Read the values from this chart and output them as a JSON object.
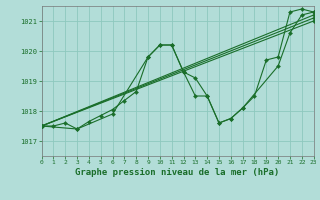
{
  "title": "Graphe pression niveau de la mer (hPa)",
  "background_color": "#b2ddd8",
  "grid_color": "#8ec8be",
  "line_color": "#1a6e2a",
  "x_min": 0,
  "x_max": 23,
  "y_min": 1016.5,
  "y_max": 1021.5,
  "yticks": [
    1017,
    1018,
    1019,
    1020,
    1021
  ],
  "xticks": [
    0,
    1,
    2,
    3,
    4,
    5,
    6,
    7,
    8,
    9,
    10,
    11,
    12,
    13,
    14,
    15,
    16,
    17,
    18,
    19,
    20,
    21,
    22,
    23
  ],
  "series": [
    {
      "x": [
        0,
        1,
        2,
        3,
        4,
        5,
        6,
        7,
        8,
        9,
        10,
        11,
        12,
        13,
        14,
        15,
        16,
        17,
        18,
        19,
        20,
        21,
        22,
        23
      ],
      "y": [
        1017.5,
        1017.5,
        1017.6,
        1017.4,
        1017.65,
        1017.85,
        1018.05,
        1018.35,
        1018.65,
        1019.8,
        1020.2,
        1020.2,
        1019.3,
        1019.1,
        1018.5,
        1017.6,
        1017.75,
        1018.1,
        1018.5,
        1019.7,
        1019.8,
        1021.3,
        1021.4,
        1021.3
      ]
    },
    {
      "x": [
        0,
        3,
        6,
        9,
        10,
        11,
        12,
        13,
        14,
        15,
        16,
        17,
        20,
        21,
        22,
        23
      ],
      "y": [
        1017.5,
        1017.4,
        1017.9,
        1019.8,
        1020.2,
        1020.2,
        1019.3,
        1018.5,
        1018.5,
        1017.6,
        1017.75,
        1018.1,
        1019.5,
        1020.6,
        1021.2,
        1021.3
      ]
    },
    {
      "x": [
        0,
        23
      ],
      "y": [
        1017.5,
        1021.2
      ]
    },
    {
      "x": [
        0,
        23
      ],
      "y": [
        1017.5,
        1021.1
      ]
    },
    {
      "x": [
        0,
        23
      ],
      "y": [
        1017.5,
        1021.0
      ]
    }
  ]
}
